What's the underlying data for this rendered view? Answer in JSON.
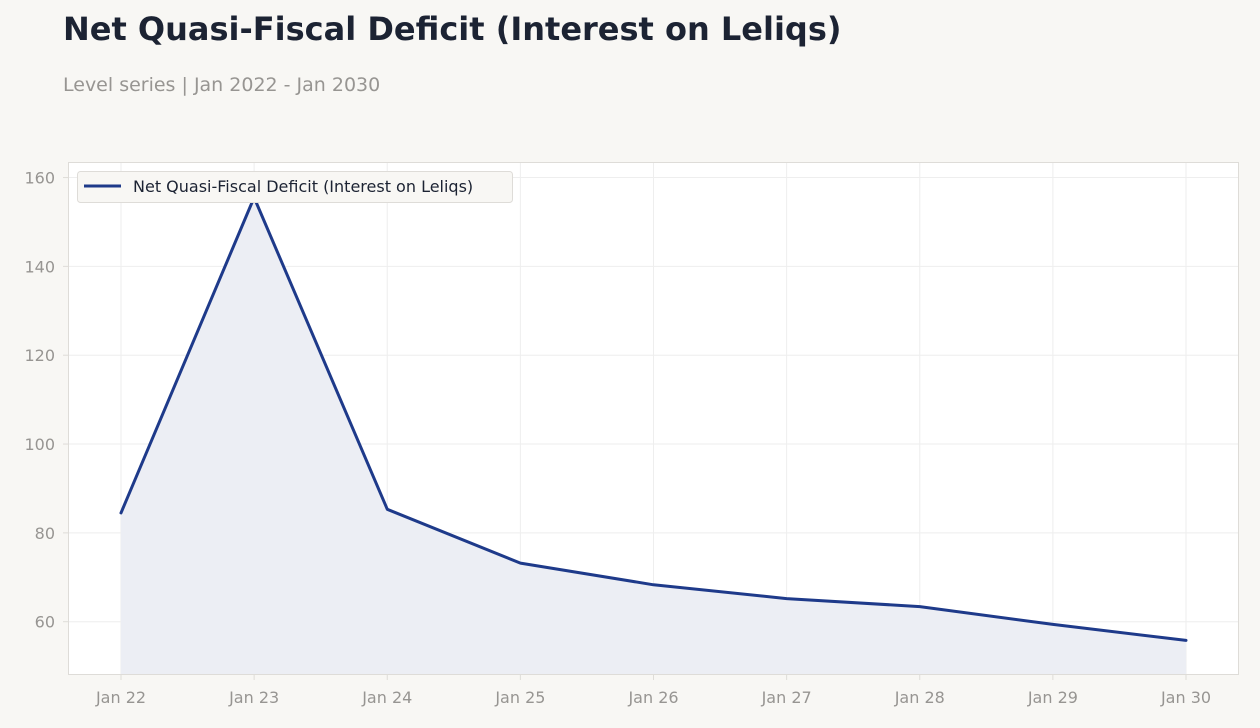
{
  "header": {
    "title": "Net Quasi-Fiscal Deficit (Interest on Leliqs)",
    "subtitle": "Level series | Jan 2022 - Jan 2030"
  },
  "colors": {
    "line": "#1e3a8a",
    "fill": "#eceef4",
    "grid": "#eeeeee",
    "axis_text": "#979592",
    "frame": "#dedcd8",
    "background": "#f8f7f4"
  },
  "chart_data": {
    "type": "area",
    "x": [
      "Jan 22",
      "Jan 23",
      "Jan 24",
      "Jan 25",
      "Jan 26",
      "Jan 27",
      "Jan 28",
      "Jan 29",
      "Jan 30"
    ],
    "series": [
      {
        "name": "Net Quasi-Fiscal Deficit (Interest on Leliqs)",
        "values": [
          84.5,
          155.5,
          85.3,
          73.2,
          68.3,
          65.2,
          63.4,
          59.4,
          55.8
        ]
      }
    ],
    "ylim": [
      48,
      163.5
    ],
    "yticks": [
      60,
      80,
      100,
      120,
      140,
      160
    ],
    "grid": true,
    "legend_position": "top-left"
  }
}
